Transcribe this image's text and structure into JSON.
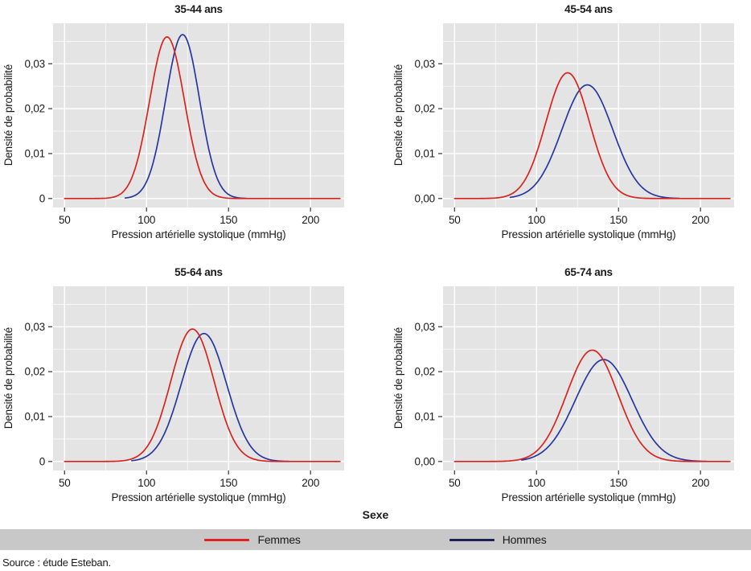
{
  "legend": {
    "title": "Sexe",
    "items": [
      {
        "label": "Femmes",
        "color": "#e0231e"
      },
      {
        "label": "Hommes",
        "color": "#1e2158"
      }
    ]
  },
  "source": "Source : étude Esteban.",
  "colors": {
    "panel_bg": "#e4e4e4",
    "grid": "#ffffff",
    "legend_band": "#c8c8c8",
    "tick": "#333333",
    "text": "#1a1a1a"
  },
  "chart_data": [
    {
      "type": "line",
      "title": "35-44 ans",
      "xlabel": "Pression artérielle systolique (mmHg)",
      "ylabel": "Densité de probabilité",
      "x_ticks": [
        50,
        100,
        150,
        200
      ],
      "x_minor": [
        75,
        125,
        175
      ],
      "y_ticks": [
        {
          "value": 0,
          "label": "0"
        },
        {
          "value": 0.01,
          "label": "0,01"
        },
        {
          "value": 0.02,
          "label": "0,02"
        },
        {
          "value": 0.03,
          "label": "0,03"
        }
      ],
      "y_minor": [
        0.005,
        0.015,
        0.025,
        0.035
      ],
      "xlim": [
        43,
        220.5
      ],
      "ylim": [
        -0.002,
        0.039
      ],
      "legend_position": "bottom",
      "grid": true,
      "series": [
        {
          "name": "Femmes",
          "color": "#d9231e",
          "shape": "gaussian",
          "mean": 112.5,
          "sd": 10.6,
          "peak": 0.036,
          "x_range": [
            50,
            218
          ]
        },
        {
          "name": "Hommes",
          "color": "#2737a1",
          "shape": "gaussian",
          "mean": 122,
          "sd": 10.3,
          "peak": 0.0365,
          "x_range": [
            87,
            161
          ]
        }
      ]
    },
    {
      "type": "line",
      "title": "45-54 ans",
      "xlabel": "Pression artérielle systolique (mmHg)",
      "ylabel": "Densité de probabilité",
      "x_ticks": [
        50,
        100,
        150,
        200
      ],
      "x_minor": [
        75,
        125,
        175
      ],
      "y_ticks": [
        {
          "value": 0,
          "label": "0,00"
        },
        {
          "value": 0.01,
          "label": "0,01"
        },
        {
          "value": 0.02,
          "label": "0,02"
        },
        {
          "value": 0.03,
          "label": "0,03"
        }
      ],
      "y_minor": [
        0.005,
        0.015,
        0.025,
        0.035
      ],
      "xlim": [
        43,
        220.5
      ],
      "ylim": [
        -0.002,
        0.039
      ],
      "legend_position": "bottom",
      "grid": true,
      "series": [
        {
          "name": "Femmes",
          "color": "#d9231e",
          "shape": "gaussian",
          "mean": 119,
          "sd": 13.3,
          "peak": 0.028,
          "x_range": [
            50,
            218
          ]
        },
        {
          "name": "Hommes",
          "color": "#2737a1",
          "shape": "gaussian",
          "mean": 131,
          "sd": 15.5,
          "peak": 0.0253,
          "x_range": [
            84,
            187
          ]
        }
      ]
    },
    {
      "type": "line",
      "title": "55-64 ans",
      "xlabel": "Pression artérielle systolique (mmHg)",
      "ylabel": "Densité de probabilité",
      "x_ticks": [
        50,
        100,
        150,
        200
      ],
      "x_minor": [
        75,
        125,
        175
      ],
      "y_ticks": [
        {
          "value": 0,
          "label": "0"
        },
        {
          "value": 0.01,
          "label": "0,01"
        },
        {
          "value": 0.02,
          "label": "0,02"
        },
        {
          "value": 0.03,
          "label": "0,03"
        }
      ],
      "y_minor": [
        0.005,
        0.015,
        0.025,
        0.035
      ],
      "xlim": [
        43,
        220.5
      ],
      "ylim": [
        -0.002,
        0.039
      ],
      "legend_position": "bottom",
      "grid": true,
      "series": [
        {
          "name": "Femmes",
          "color": "#d9231e",
          "shape": "gaussian",
          "mean": 128,
          "sd": 13.2,
          "peak": 0.0295,
          "x_range": [
            50,
            218
          ]
        },
        {
          "name": "Hommes",
          "color": "#2737a1",
          "shape": "gaussian",
          "mean": 135,
          "sd": 13.8,
          "peak": 0.0285,
          "x_range": [
            91,
            187
          ]
        }
      ]
    },
    {
      "type": "line",
      "title": "65-74 ans",
      "xlabel": "Pression artérielle systolique (mmHg)",
      "ylabel": "Densité de probabilité",
      "x_ticks": [
        50,
        100,
        150,
        200
      ],
      "x_minor": [
        75,
        125,
        175
      ],
      "y_ticks": [
        {
          "value": 0,
          "label": "0,00"
        },
        {
          "value": 0.01,
          "label": "0,01"
        },
        {
          "value": 0.02,
          "label": "0,02"
        },
        {
          "value": 0.03,
          "label": "0,03"
        }
      ],
      "y_minor": [
        0.005,
        0.015,
        0.025,
        0.035
      ],
      "xlim": [
        43,
        220.5
      ],
      "ylim": [
        -0.002,
        0.039
      ],
      "legend_position": "bottom",
      "grid": true,
      "series": [
        {
          "name": "Femmes",
          "color": "#d9231e",
          "shape": "gaussian",
          "mean": 134,
          "sd": 15.6,
          "peak": 0.0248,
          "x_range": [
            50,
            218
          ]
        },
        {
          "name": "Hommes",
          "color": "#2737a1",
          "shape": "gaussian",
          "mean": 141,
          "sd": 17.2,
          "peak": 0.0227,
          "x_range": [
            91,
            204
          ]
        }
      ]
    }
  ]
}
